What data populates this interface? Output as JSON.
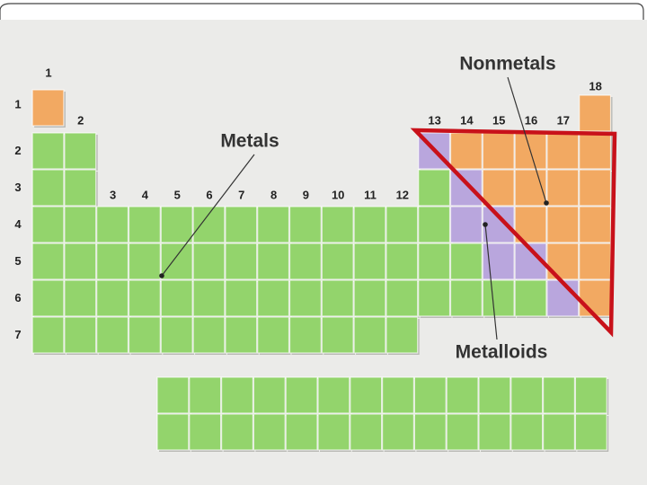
{
  "groups": [
    "1",
    "2",
    "3",
    "4",
    "5",
    "6",
    "7",
    "8",
    "9",
    "10",
    "11",
    "12",
    "13",
    "14",
    "15",
    "16",
    "17",
    "18"
  ],
  "periods": [
    "1",
    "2",
    "3",
    "4",
    "5",
    "6",
    "7"
  ],
  "labels": {
    "metals": "Metals",
    "nonmetals": "Nonmetals",
    "metalloids": "Metalloids"
  }
}
